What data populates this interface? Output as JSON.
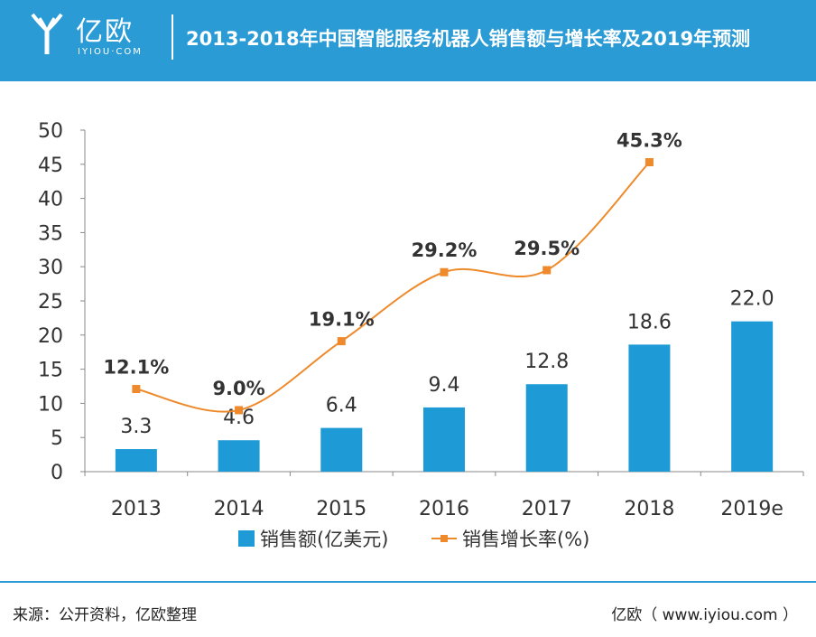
{
  "header": {
    "logo_text": "亿欧",
    "logo_sub": "IYIOU·COM",
    "title": "2013-2018年中国智能服务机器人销售额与增长率及2019年预测"
  },
  "chart_data": {
    "type": "bar+line",
    "categories": [
      "2013",
      "2014",
      "2015",
      "2016",
      "2017",
      "2018",
      "2019e"
    ],
    "series": [
      {
        "name": "销售额(亿美元)",
        "type": "bar",
        "color": "#1e9ad6",
        "values": [
          3.3,
          4.6,
          6.4,
          9.4,
          12.8,
          18.6,
          22.0
        ],
        "labels": [
          "3.3",
          "4.6",
          "6.4",
          "9.4",
          "12.8",
          "18.6",
          "22.0"
        ]
      },
      {
        "name": "销售增长率(%)",
        "type": "line",
        "color": "#ee8a2b",
        "values": [
          12.1,
          9.0,
          19.1,
          29.2,
          29.5,
          45.3,
          null
        ],
        "labels": [
          "12.1%",
          "9.0%",
          "19.1%",
          "29.2%",
          "29.5%",
          "45.3%",
          null
        ]
      }
    ],
    "ylim": [
      0,
      50
    ],
    "yticks": [
      0,
      5,
      10,
      15,
      20,
      25,
      30,
      35,
      40,
      45,
      50
    ],
    "legend_position": "bottom"
  },
  "footer": {
    "source": "来源：公开资料，亿欧整理",
    "credit": "亿欧（ www.iyiou.com ）"
  }
}
